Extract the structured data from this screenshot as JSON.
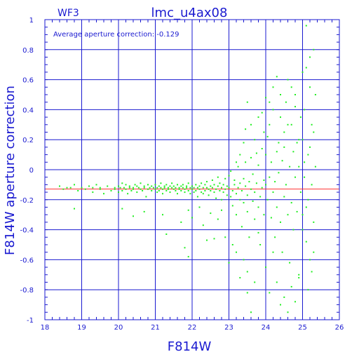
{
  "chart_data": {
    "type": "scatter",
    "title": "lmc_u4ax08",
    "camera_label": "WF3",
    "annotation": "Average aperture correction: -0.129",
    "xlabel": "F814W",
    "ylabel": "F814W aperture correction",
    "xlim": [
      18,
      26
    ],
    "ylim": [
      -1,
      1
    ],
    "xticks": [
      "18",
      "19",
      "20",
      "21",
      "22",
      "23",
      "24",
      "25",
      "26"
    ],
    "yticks": [
      "1",
      "0.8",
      "0.6",
      "0.4",
      "0.2",
      "0",
      "-0.2",
      "-0.4",
      "-0.6",
      "-0.8",
      "-1"
    ],
    "grid": true,
    "reference_line": {
      "y": -0.129,
      "color": "#ff3030"
    },
    "colors": {
      "axis": "#1a1ad0",
      "points": "#22ee22",
      "reference": "#ff3030"
    },
    "points": [
      [
        18.4,
        -0.11
      ],
      [
        18.5,
        -0.13
      ],
      [
        18.6,
        -0.12
      ],
      [
        18.7,
        -0.12
      ],
      [
        18.8,
        -0.1
      ],
      [
        18.8,
        -0.26
      ],
      [
        18.9,
        -0.14
      ],
      [
        19.0,
        -0.12
      ],
      [
        19.1,
        -0.13
      ],
      [
        19.2,
        -0.11
      ],
      [
        19.3,
        -0.12
      ],
      [
        19.3,
        -0.15
      ],
      [
        19.4,
        -0.1
      ],
      [
        19.5,
        -0.12
      ],
      [
        19.5,
        -0.13
      ],
      [
        19.6,
        -0.16
      ],
      [
        19.7,
        -0.11
      ],
      [
        19.8,
        -0.14
      ],
      [
        19.9,
        -0.12
      ],
      [
        19.9,
        -0.13
      ],
      [
        20.0,
        -0.11
      ],
      [
        20.0,
        -0.15
      ],
      [
        20.05,
        -0.12
      ],
      [
        20.1,
        -0.09
      ],
      [
        20.1,
        -0.14
      ],
      [
        20.15,
        -0.12
      ],
      [
        20.2,
        -0.13
      ],
      [
        20.2,
        -0.1
      ],
      [
        20.25,
        -0.16
      ],
      [
        20.3,
        -0.11
      ],
      [
        20.3,
        -0.12
      ],
      [
        20.35,
        -0.14
      ],
      [
        20.4,
        -0.12
      ],
      [
        20.4,
        -0.13
      ],
      [
        20.45,
        -0.1
      ],
      [
        20.5,
        -0.15
      ],
      [
        20.5,
        -0.11
      ],
      [
        20.55,
        -0.12
      ],
      [
        20.6,
        -0.13
      ],
      [
        20.6,
        -0.09
      ],
      [
        20.65,
        -0.14
      ],
      [
        20.7,
        -0.12
      ],
      [
        20.7,
        -0.11
      ],
      [
        20.75,
        -0.18
      ],
      [
        20.8,
        -0.13
      ],
      [
        20.8,
        -0.1
      ],
      [
        20.85,
        -0.12
      ],
      [
        20.9,
        -0.14
      ],
      [
        20.9,
        -0.11
      ],
      [
        20.95,
        -0.12
      ],
      [
        21.0,
        -0.13
      ],
      [
        21.0,
        -0.1
      ],
      [
        21.05,
        -0.15
      ],
      [
        21.05,
        -0.12
      ],
      [
        21.1,
        -0.11
      ],
      [
        21.1,
        -0.14
      ],
      [
        21.15,
        -0.12
      ],
      [
        21.15,
        -0.09
      ],
      [
        21.2,
        -0.13
      ],
      [
        21.2,
        -0.16
      ],
      [
        21.25,
        -0.11
      ],
      [
        21.25,
        -0.12
      ],
      [
        21.3,
        -0.1
      ],
      [
        21.3,
        -0.14
      ],
      [
        21.35,
        -0.12
      ],
      [
        21.35,
        -0.13
      ],
      [
        21.4,
        -0.11
      ],
      [
        21.4,
        -0.15
      ],
      [
        21.45,
        -0.12
      ],
      [
        21.45,
        -0.09
      ],
      [
        21.5,
        -0.13
      ],
      [
        21.5,
        -0.11
      ],
      [
        21.55,
        -0.14
      ],
      [
        21.55,
        -0.12
      ],
      [
        21.6,
        -0.1
      ],
      [
        21.6,
        -0.16
      ],
      [
        21.65,
        -0.12
      ],
      [
        21.65,
        -0.13
      ],
      [
        21.7,
        -0.11
      ],
      [
        21.7,
        -0.14
      ],
      [
        21.75,
        -0.12
      ],
      [
        21.75,
        -0.1
      ],
      [
        21.8,
        -0.13
      ],
      [
        21.8,
        -0.15
      ],
      [
        21.85,
        -0.11
      ],
      [
        21.85,
        -0.12
      ],
      [
        21.9,
        -0.14
      ],
      [
        21.9,
        -0.09
      ],
      [
        21.95,
        -0.12
      ],
      [
        21.95,
        -0.16
      ],
      [
        22.0,
        -0.11
      ],
      [
        22.0,
        -0.13
      ],
      [
        22.05,
        -0.12
      ],
      [
        22.05,
        -0.15
      ],
      [
        22.1,
        -0.1
      ],
      [
        22.1,
        -0.14
      ],
      [
        22.15,
        -0.12
      ],
      [
        22.15,
        -0.18
      ],
      [
        22.2,
        -0.11
      ],
      [
        22.2,
        -0.13
      ],
      [
        22.25,
        -0.09
      ],
      [
        22.25,
        -0.15
      ],
      [
        22.3,
        -0.12
      ],
      [
        22.3,
        -0.16
      ],
      [
        22.35,
        -0.1
      ],
      [
        22.35,
        -0.14
      ],
      [
        22.4,
        -0.12
      ],
      [
        22.4,
        -0.08
      ],
      [
        22.45,
        -0.13
      ],
      [
        22.45,
        -0.17
      ],
      [
        22.5,
        -0.11
      ],
      [
        22.5,
        -0.14
      ],
      [
        22.55,
        -0.12
      ],
      [
        22.55,
        -0.07
      ],
      [
        22.6,
        -0.15
      ],
      [
        22.6,
        -0.1
      ],
      [
        22.65,
        -0.13
      ],
      [
        22.65,
        -0.19
      ],
      [
        22.7,
        -0.11
      ],
      [
        22.7,
        -0.05
      ],
      [
        22.75,
        -0.14
      ],
      [
        22.75,
        -0.09
      ],
      [
        22.8,
        -0.12
      ],
      [
        22.8,
        -0.2
      ],
      [
        22.85,
        -0.1
      ],
      [
        22.85,
        -0.15
      ],
      [
        22.9,
        -0.06
      ],
      [
        22.9,
        -0.13
      ],
      [
        22.95,
        -0.17
      ],
      [
        22.95,
        -0.11
      ],
      [
        21.9,
        -0.27
      ],
      [
        22.3,
        -0.37
      ],
      [
        22.4,
        -0.47
      ],
      [
        21.3,
        -0.43
      ],
      [
        21.9,
        -0.58
      ],
      [
        21.8,
        -0.52
      ],
      [
        20.4,
        -0.31
      ],
      [
        20.7,
        -0.28
      ],
      [
        21.2,
        -0.3
      ],
      [
        22.0,
        -0.32
      ],
      [
        22.5,
        -0.29
      ],
      [
        22.7,
        -0.33
      ],
      [
        22.9,
        -0.45
      ],
      [
        22.6,
        -0.46
      ],
      [
        21.7,
        -0.35
      ],
      [
        22.2,
        -0.25
      ],
      [
        22.8,
        -0.27
      ],
      [
        20.1,
        -0.26
      ],
      [
        23.0,
        -0.12
      ],
      [
        23.0,
        -0.04
      ],
      [
        23.05,
        -0.18
      ],
      [
        23.05,
        -0.01
      ],
      [
        23.1,
        -0.14
      ],
      [
        23.1,
        -0.24
      ],
      [
        23.15,
        -0.1
      ],
      [
        23.15,
        -0.07
      ],
      [
        23.2,
        -0.16
      ],
      [
        23.2,
        -0.3
      ],
      [
        23.25,
        -0.12
      ],
      [
        23.25,
        0.02
      ],
      [
        23.3,
        -0.2
      ],
      [
        23.3,
        -0.09
      ],
      [
        23.35,
        -0.14
      ],
      [
        23.35,
        -0.38
      ],
      [
        23.4,
        -0.06
      ],
      [
        23.4,
        -0.22
      ],
      [
        23.45,
        -0.11
      ],
      [
        23.45,
        0.05
      ],
      [
        23.5,
        -0.17
      ],
      [
        23.5,
        -0.28
      ],
      [
        23.55,
        -0.08
      ],
      [
        23.55,
        -0.45
      ],
      [
        23.6,
        -0.13
      ],
      [
        23.6,
        0.08
      ],
      [
        23.65,
        -0.21
      ],
      [
        23.65,
        -0.03
      ],
      [
        23.7,
        -0.15
      ],
      [
        23.7,
        -0.33
      ],
      [
        23.75,
        0.11
      ],
      [
        23.75,
        -0.09
      ],
      [
        23.8,
        -0.25
      ],
      [
        23.8,
        0.03
      ],
      [
        23.85,
        -0.18
      ],
      [
        23.85,
        -0.5
      ],
      [
        23.9,
        0.14
      ],
      [
        23.9,
        -0.12
      ],
      [
        23.95,
        -0.07
      ],
      [
        23.95,
        -0.3
      ],
      [
        23.1,
        -0.5
      ],
      [
        23.0,
        -0.62
      ],
      [
        23.2,
        -0.55
      ],
      [
        23.3,
        -0.72
      ],
      [
        23.5,
        -0.68
      ],
      [
        23.5,
        -0.82
      ],
      [
        23.6,
        -0.95
      ],
      [
        23.4,
        -0.6
      ],
      [
        23.7,
        -0.75
      ],
      [
        23.8,
        -0.42
      ],
      [
        23.5,
        0.45
      ],
      [
        23.6,
        0.3
      ],
      [
        23.7,
        0.2
      ],
      [
        23.8,
        0.35
      ],
      [
        23.9,
        0.38
      ],
      [
        23.95,
        0.25
      ],
      [
        23.4,
        0.18
      ],
      [
        23.3,
        0.1
      ],
      [
        23.2,
        0.05
      ],
      [
        23.45,
        0.27
      ],
      [
        24.0,
        -0.1
      ],
      [
        24.0,
        0.1
      ],
      [
        24.05,
        -0.2
      ],
      [
        24.05,
        0.22
      ],
      [
        24.1,
        -0.05
      ],
      [
        24.1,
        0.3
      ],
      [
        24.15,
        -0.32
      ],
      [
        24.15,
        0.05
      ],
      [
        24.2,
        -0.15
      ],
      [
        24.2,
        0.4
      ],
      [
        24.25,
        -0.08
      ],
      [
        24.25,
        -0.45
      ],
      [
        24.3,
        0.12
      ],
      [
        24.3,
        -0.25
      ],
      [
        24.35,
        0.18
      ],
      [
        24.35,
        -0.02
      ],
      [
        24.4,
        -0.35
      ],
      [
        24.4,
        0.35
      ],
      [
        24.45,
        0.06
      ],
      [
        24.45,
        -0.55
      ],
      [
        24.5,
        0.25
      ],
      [
        24.5,
        -0.18
      ],
      [
        24.55,
        0.45
      ],
      [
        24.55,
        -0.1
      ],
      [
        24.6,
        -0.3
      ],
      [
        24.6,
        0.6
      ],
      [
        24.65,
        0.02
      ],
      [
        24.65,
        -0.62
      ],
      [
        24.7,
        0.3
      ],
      [
        24.7,
        -0.22
      ],
      [
        24.75,
        0.12
      ],
      [
        24.75,
        -0.4
      ],
      [
        24.8,
        0.5
      ],
      [
        24.8,
        -0.05
      ],
      [
        24.85,
        -0.28
      ],
      [
        24.85,
        0.18
      ],
      [
        24.9,
        -0.7
      ],
      [
        24.9,
        0.02
      ],
      [
        24.95,
        0.35
      ],
      [
        24.95,
        -0.15
      ],
      [
        24.0,
        -0.65
      ],
      [
        24.1,
        -0.82
      ],
      [
        24.2,
        -0.55
      ],
      [
        24.3,
        -0.75
      ],
      [
        24.4,
        -0.9
      ],
      [
        24.5,
        -0.85
      ],
      [
        24.6,
        -0.95
      ],
      [
        24.7,
        -0.78
      ],
      [
        24.8,
        -0.88
      ],
      [
        24.9,
        -0.72
      ],
      [
        24.2,
        0.55
      ],
      [
        24.4,
        0.5
      ],
      [
        24.6,
        0.3
      ],
      [
        24.3,
        0.62
      ],
      [
        24.8,
        0.42
      ],
      [
        24.7,
        0.55
      ],
      [
        24.9,
        0.2
      ],
      [
        24.5,
        0.15
      ],
      [
        24.1,
        0.45
      ],
      [
        24.0,
        0.48
      ],
      [
        25.0,
        0.2
      ],
      [
        25.0,
        -0.3
      ],
      [
        25.05,
        0.4
      ],
      [
        25.05,
        -0.05
      ],
      [
        25.1,
        0.68
      ],
      [
        25.1,
        -0.48
      ],
      [
        25.15,
        0.1
      ],
      [
        25.15,
        -0.2
      ],
      [
        25.2,
        0.55
      ],
      [
        25.2,
        -0.6
      ],
      [
        25.25,
        0.3
      ],
      [
        25.25,
        -0.1
      ],
      [
        25.3,
        0.8
      ],
      [
        25.3,
        -0.35
      ],
      [
        25.35,
        0.5
      ],
      [
        25.35,
        0.02
      ],
      [
        25.1,
        0.96
      ],
      [
        25.2,
        0.75
      ],
      [
        25.0,
        0.65
      ],
      [
        25.15,
        -0.8
      ],
      [
        25.25,
        -0.68
      ],
      [
        25.05,
        0.05
      ],
      [
        25.3,
        0.25
      ],
      [
        25.2,
        0.15
      ],
      [
        25.1,
        -0.25
      ],
      [
        25.0,
        -0.4
      ],
      [
        25.3,
        -0.55
      ]
    ]
  }
}
